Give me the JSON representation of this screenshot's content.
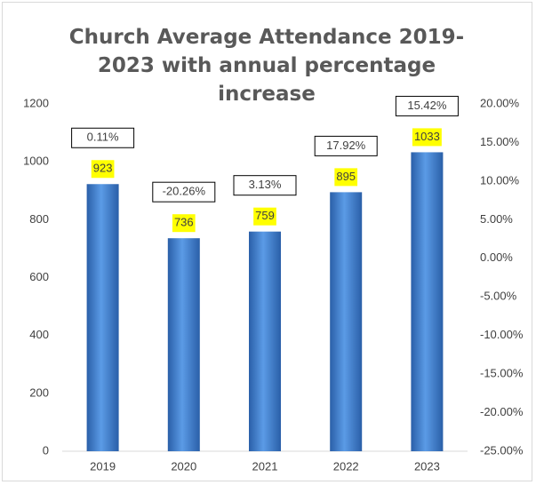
{
  "chart_data": {
    "type": "bar",
    "title": "Church Average Attendance 2019-2023 with annual percentage increase",
    "categories": [
      "2019",
      "2020",
      "2021",
      "2022",
      "2023"
    ],
    "series": [
      {
        "name": "Average Attendance",
        "color": "#3a78c9",
        "values": [
          923,
          736,
          759,
          895,
          1033
        ]
      },
      {
        "name": "Annual percentage increase",
        "axis": "y2",
        "values": [
          0.11,
          -20.26,
          3.13,
          17.92,
          15.42
        ],
        "value_labels": [
          "0.11%",
          "-20.26%",
          "3.13%",
          "17.92%",
          "15.42%"
        ]
      }
    ],
    "ylim": [
      0,
      1200
    ],
    "yticks": [
      0,
      200,
      400,
      600,
      800,
      1000,
      1200
    ],
    "y2lim": [
      -25,
      20
    ],
    "y2ticks": [
      {
        "value": -25,
        "label": "-25.00%"
      },
      {
        "value": -20,
        "label": "-20.00%"
      },
      {
        "value": -15,
        "label": "-15.00%"
      },
      {
        "value": -10,
        "label": "-10.00%"
      },
      {
        "value": -5,
        "label": "-5.00%"
      },
      {
        "value": 0,
        "label": "0.00%"
      },
      {
        "value": 5,
        "label": "5.00%"
      },
      {
        "value": 10,
        "label": "10.00%"
      },
      {
        "value": 15,
        "label": "15.00%"
      },
      {
        "value": 20,
        "label": "20.00%"
      }
    ],
    "grid": false
  }
}
